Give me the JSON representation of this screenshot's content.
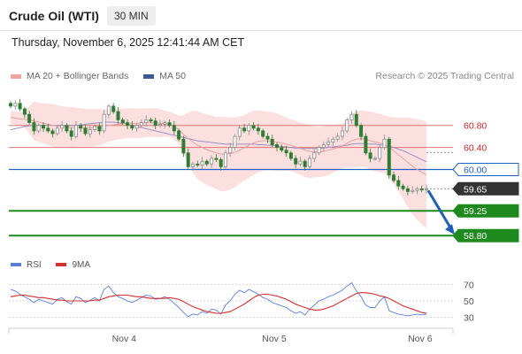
{
  "header": {
    "title": "Crude Oil (WTI)",
    "timeframe": "30 MIN",
    "timestamp": "Thursday, November 6, 2025 12:41:44 AM CET"
  },
  "legend": {
    "items": [
      {
        "label": "MA 20 + Bollinger Bands",
        "color": "#f4a3a3"
      },
      {
        "label": "MA 50",
        "color": "#3a5a92"
      }
    ],
    "credit": "Research © 2025 Trading Central"
  },
  "rsi_legend": {
    "items": [
      {
        "label": "RSI",
        "color": "#5b7fd6"
      },
      {
        "label": "9MA",
        "color": "#d32f2f"
      }
    ]
  },
  "colors": {
    "up_candle": "#8a8a8a",
    "down_candle": "#2e7d32",
    "resistance": "#e57373",
    "pivot": "#1e63c8",
    "support": "#1e8a1e",
    "last_price": "#333333",
    "band_fill": "#fbdada",
    "ma50": "#9a8fc4",
    "arrow": "#1f5fb5"
  },
  "chart_data": [
    {
      "type": "candlestick",
      "title": "Crude Oil (WTI)",
      "timeframe": "30 MIN",
      "x_tick_labels": [
        "Nov 4",
        "Nov 5",
        "Nov 6"
      ],
      "ylim": [
        58.45,
        61.55
      ],
      "levels": [
        {
          "price": 60.8,
          "label": "60.80",
          "kind": "resistance"
        },
        {
          "price": 60.4,
          "label": "60.40",
          "kind": "resistance"
        },
        {
          "price": 60.0,
          "label": "60.00",
          "kind": "pivot"
        },
        {
          "price": 59.65,
          "label": "59.65",
          "kind": "last"
        },
        {
          "price": 59.25,
          "label": "59.25",
          "kind": "support"
        },
        {
          "price": 58.8,
          "label": "58.80",
          "kind": "support"
        }
      ],
      "forecast_arrow": {
        "from": 59.65,
        "to": 58.8
      },
      "close": [
        61.15,
        61.2,
        61.1,
        61.0,
        60.85,
        60.7,
        60.8,
        60.75,
        60.7,
        60.65,
        60.75,
        60.8,
        60.7,
        60.6,
        60.8,
        60.75,
        60.65,
        60.72,
        60.78,
        60.7,
        61.0,
        61.15,
        61.05,
        60.9,
        60.85,
        60.8,
        60.75,
        60.8,
        60.85,
        60.9,
        60.88,
        60.8,
        60.82,
        60.85,
        60.8,
        60.7,
        60.55,
        60.3,
        60.05,
        60.1,
        60.08,
        60.15,
        60.1,
        60.2,
        60.18,
        60.05,
        60.3,
        60.4,
        60.6,
        60.75,
        60.7,
        60.8,
        60.75,
        60.7,
        60.6,
        60.55,
        60.45,
        60.4,
        60.35,
        60.3,
        60.2,
        60.1,
        60.15,
        60.05,
        60.2,
        60.3,
        60.4,
        60.45,
        60.5,
        60.55,
        60.6,
        60.7,
        60.9,
        61.0,
        60.8,
        60.6,
        60.3,
        60.2,
        60.2,
        60.4,
        60.55,
        59.9,
        59.8,
        59.7,
        59.65,
        59.6,
        59.62,
        59.65,
        59.63,
        59.65
      ],
      "ma20": [
        60.95,
        60.93,
        60.92,
        60.91,
        60.9,
        60.88,
        60.86,
        60.84,
        60.82,
        60.8,
        60.79,
        60.78,
        60.77,
        60.76,
        60.76,
        60.76,
        60.75,
        60.75,
        60.76,
        60.77,
        60.78,
        60.8,
        60.81,
        60.82,
        60.83,
        60.84,
        60.84,
        60.84,
        60.84,
        60.85,
        60.85,
        60.85,
        60.84,
        60.83,
        60.82,
        60.78,
        60.72,
        60.64,
        60.56,
        60.5,
        60.44,
        60.4,
        60.36,
        60.33,
        60.3,
        60.28,
        60.28,
        60.29,
        60.31,
        60.35,
        60.39,
        60.44,
        60.48,
        60.51,
        60.52,
        60.52,
        60.51,
        60.5,
        60.48,
        60.46,
        60.44,
        60.41,
        60.38,
        60.35,
        60.33,
        60.32,
        60.32,
        60.33,
        60.35,
        60.37,
        60.4,
        60.43,
        60.47,
        60.52,
        60.55,
        60.56,
        60.55,
        60.52,
        60.5,
        60.48,
        60.46,
        60.4,
        60.34,
        60.27,
        60.2,
        60.13,
        60.06,
        60.0,
        59.95,
        59.9
      ],
      "ma50": [
        60.72,
        60.74,
        60.76,
        60.78,
        60.79,
        60.8,
        60.8,
        60.8,
        60.8,
        60.8,
        60.8,
        60.8,
        60.8,
        60.8,
        60.8,
        60.81,
        60.82,
        60.83,
        60.84,
        60.85,
        60.86,
        60.86,
        60.86,
        60.85,
        60.84,
        60.82,
        60.8,
        60.78,
        60.76,
        60.74,
        60.72,
        60.7,
        60.68,
        60.66,
        60.64,
        60.62,
        60.6,
        60.58,
        60.56,
        60.54,
        60.52,
        60.51,
        60.5,
        60.49,
        60.48,
        60.47,
        60.46,
        60.46,
        60.46,
        60.46,
        60.46,
        60.46,
        60.46,
        60.45,
        60.45,
        60.44,
        60.44,
        60.43,
        60.42,
        60.41,
        60.4,
        60.39,
        60.38,
        60.38,
        60.38,
        60.38,
        60.38,
        60.39,
        60.4,
        60.41,
        60.42,
        60.43,
        60.44,
        60.46,
        60.47,
        60.47,
        60.47,
        60.46,
        60.46,
        60.45,
        60.44,
        60.42,
        60.4,
        60.37,
        60.34,
        60.3,
        60.26,
        60.22,
        60.18,
        60.14
      ]
    },
    {
      "type": "line",
      "title": "RSI",
      "y_tick_labels": [
        "70",
        "50",
        "30"
      ],
      "ylim": [
        20,
        80
      ],
      "series": [
        {
          "name": "RSI",
          "values": [
            64,
            62,
            58,
            55,
            52,
            48,
            52,
            50,
            48,
            46,
            52,
            54,
            49,
            46,
            55,
            53,
            48,
            51,
            54,
            50,
            64,
            68,
            60,
            55,
            53,
            50,
            48,
            51,
            54,
            57,
            56,
            52,
            53,
            55,
            52,
            47,
            42,
            36,
            31,
            34,
            33,
            37,
            35,
            40,
            39,
            34,
            45,
            50,
            58,
            63,
            60,
            64,
            61,
            58,
            54,
            52,
            48,
            46,
            44,
            42,
            38,
            35,
            37,
            33,
            40,
            45,
            50,
            52,
            55,
            57,
            60,
            63,
            68,
            72,
            62,
            55,
            45,
            42,
            42,
            50,
            55,
            38,
            36,
            34,
            33,
            32,
            33,
            34,
            33,
            34
          ]
        },
        {
          "name": "9MA",
          "values": [
            55,
            56,
            57,
            57,
            56,
            55,
            54,
            54,
            53,
            52,
            51,
            51,
            50,
            50,
            50,
            50,
            50,
            50,
            51,
            51,
            53,
            55,
            56,
            57,
            57,
            57,
            56,
            55,
            55,
            54,
            53,
            53,
            53,
            53,
            54,
            53,
            52,
            49,
            46,
            43,
            41,
            39,
            37,
            36,
            35,
            35,
            36,
            37,
            40,
            43,
            46,
            50,
            54,
            57,
            58,
            58,
            57,
            56,
            54,
            52,
            49,
            46,
            44,
            42,
            40,
            39,
            39,
            40,
            42,
            44,
            47,
            50,
            53,
            56,
            59,
            60,
            60,
            59,
            58,
            56,
            55,
            53,
            50,
            47,
            44,
            42,
            40,
            38,
            36,
            35
          ]
        }
      ]
    }
  ]
}
